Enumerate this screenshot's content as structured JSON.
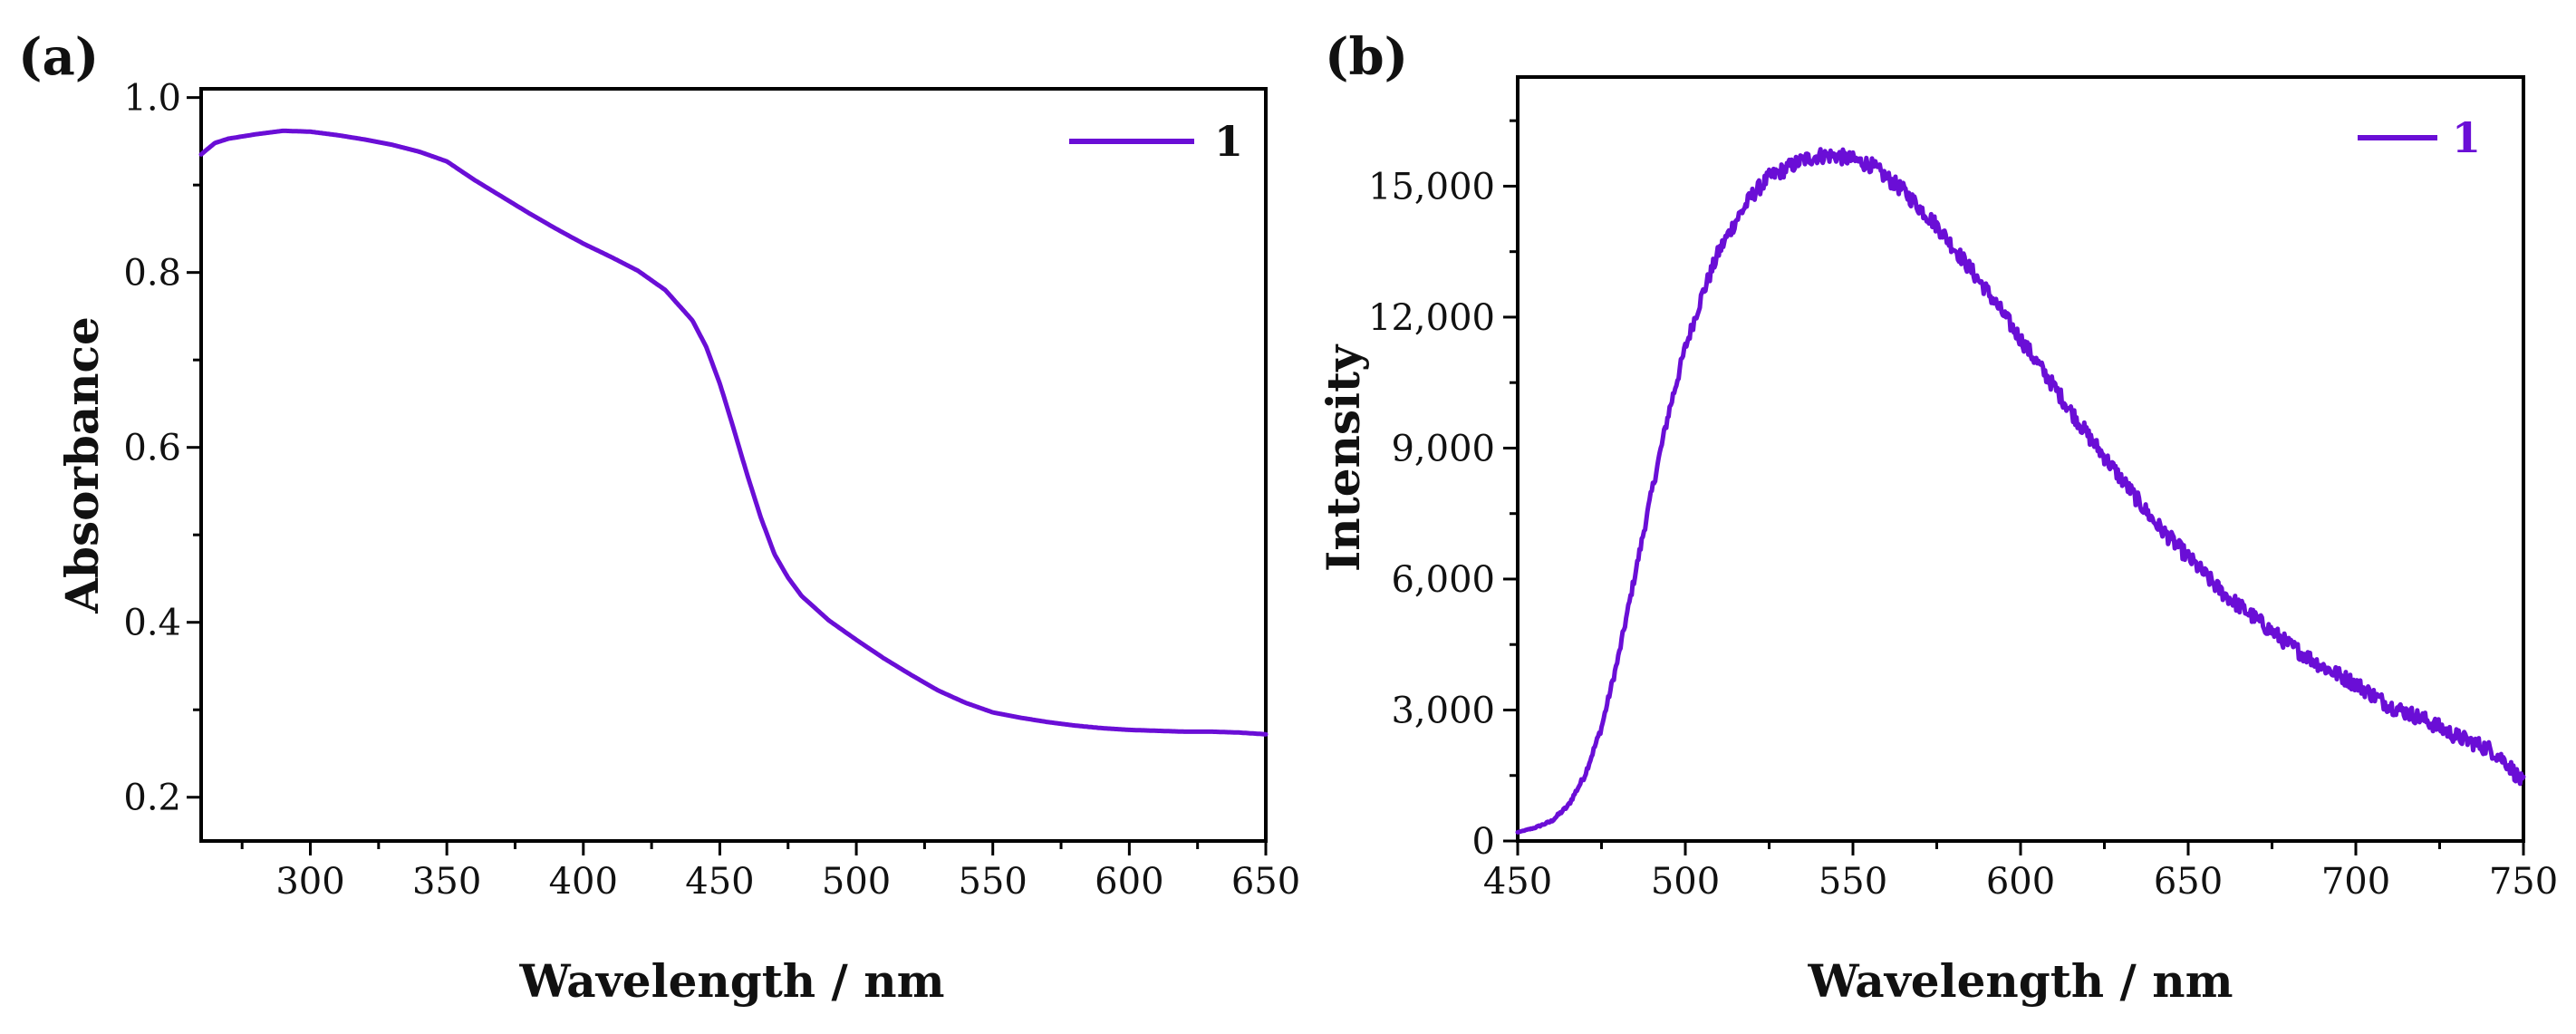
{
  "chart_data": [
    {
      "panel_label": "(a)",
      "type": "line",
      "xlabel": "Wavelength / nm",
      "ylabel": "Absorbance",
      "xlim": [
        260,
        650
      ],
      "ylim": [
        0.15,
        1.01
      ],
      "xticks": [
        300,
        350,
        400,
        450,
        500,
        550,
        600,
        650
      ],
      "xtick_labels": [
        "300",
        "350",
        "400",
        "450",
        "500",
        "550",
        "600",
        "650"
      ],
      "xminor": [
        275,
        325,
        375,
        425,
        475,
        525,
        575,
        625
      ],
      "yticks": [
        0.2,
        0.4,
        0.6,
        0.8,
        1.0
      ],
      "ytick_labels": [
        "0.2",
        "0.4",
        "0.6",
        "0.8",
        "1.0"
      ],
      "yminor": [
        0.3,
        0.5,
        0.7,
        0.9
      ],
      "legend": {
        "position": "top-right",
        "entries": [
          "1"
        ]
      },
      "series": [
        {
          "name": "1",
          "color": "#6a0ed6",
          "noise": 0,
          "x": [
            260,
            265,
            270,
            280,
            290,
            300,
            310,
            320,
            330,
            340,
            350,
            360,
            370,
            380,
            390,
            400,
            410,
            420,
            430,
            440,
            445,
            450,
            455,
            460,
            465,
            470,
            475,
            480,
            490,
            500,
            510,
            520,
            530,
            540,
            550,
            560,
            570,
            580,
            590,
            600,
            610,
            620,
            630,
            640,
            650
          ],
          "y": [
            0.935,
            0.948,
            0.953,
            0.958,
            0.962,
            0.961,
            0.957,
            0.952,
            0.946,
            0.938,
            0.927,
            0.906,
            0.887,
            0.868,
            0.85,
            0.833,
            0.818,
            0.802,
            0.78,
            0.745,
            0.715,
            0.673,
            0.622,
            0.569,
            0.52,
            0.478,
            0.451,
            0.43,
            0.402,
            0.38,
            0.359,
            0.34,
            0.322,
            0.308,
            0.297,
            0.291,
            0.286,
            0.282,
            0.279,
            0.277,
            0.276,
            0.275,
            0.275,
            0.274,
            0.272
          ]
        }
      ]
    },
    {
      "panel_label": "(b)",
      "type": "line",
      "xlabel": "Wavelength / nm",
      "ylabel": "Intensity",
      "xlim": [
        450,
        750
      ],
      "ylim": [
        0,
        17500
      ],
      "xticks": [
        450,
        500,
        550,
        600,
        650,
        700,
        750
      ],
      "xtick_labels": [
        "450",
        "500",
        "550",
        "600",
        "650",
        "700",
        "750"
      ],
      "xminor": [
        475,
        525,
        575,
        625,
        675,
        725
      ],
      "yticks": [
        0,
        3000,
        6000,
        9000,
        12000,
        15000
      ],
      "ytick_labels": [
        "0",
        "3,000",
        "6,000",
        "9,000",
        "12,000",
        "15,000"
      ],
      "yminor": [
        1500,
        4500,
        7500,
        10500,
        13500,
        16500
      ],
      "legend": {
        "position": "top-right",
        "entries": [
          "1"
        ]
      },
      "series": [
        {
          "name": "1",
          "color": "#6a0ed6",
          "noise": 180,
          "x": [
            450,
            455,
            460,
            465,
            470,
            475,
            480,
            485,
            490,
            495,
            500,
            505,
            510,
            515,
            520,
            525,
            530,
            535,
            540,
            545,
            550,
            555,
            560,
            565,
            570,
            575,
            580,
            590,
            600,
            610,
            620,
            630,
            640,
            650,
            660,
            670,
            680,
            690,
            700,
            710,
            720,
            730,
            740,
            745,
            750
          ],
          "y": [
            200,
            300,
            450,
            800,
            1500,
            2600,
            4200,
            6100,
            8000,
            9800,
            11300,
            12500,
            13500,
            14200,
            14800,
            15200,
            15400,
            15600,
            15700,
            15700,
            15600,
            15500,
            15200,
            14900,
            14500,
            14100,
            13600,
            12600,
            11500,
            10400,
            9300,
            8300,
            7300,
            6500,
            5700,
            5100,
            4500,
            4000,
            3600,
            3100,
            2800,
            2400,
            2100,
            1800,
            1300
          ]
        }
      ]
    }
  ]
}
